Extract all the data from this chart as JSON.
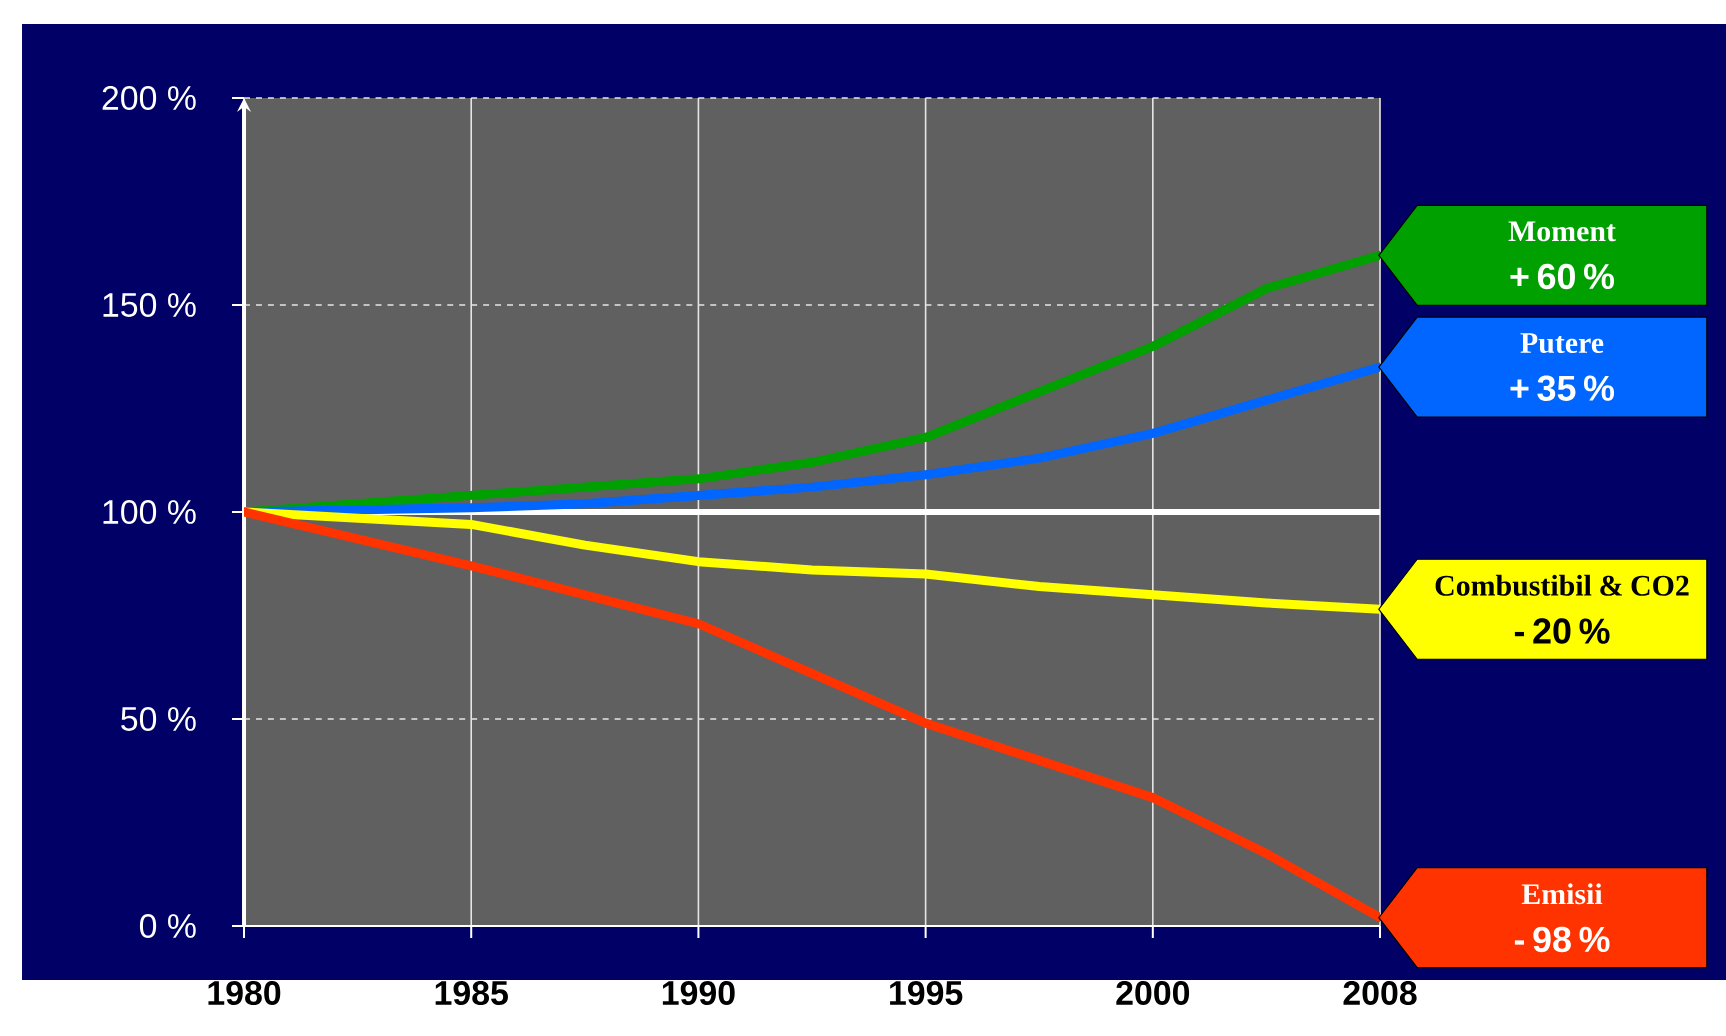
{
  "chart_data": {
    "type": "line",
    "categories": [
      "1980",
      null,
      "1985",
      null,
      "1990",
      null,
      "1995",
      null,
      "2000",
      null,
      "2008"
    ],
    "series": [
      {
        "name": "Moment",
        "color": "#00a000",
        "values": [
          100,
          102,
          104,
          106,
          108,
          112,
          118,
          129,
          140,
          154,
          162
        ]
      },
      {
        "name": "Putere",
        "color": "#0066ff",
        "values": [
          100,
          100.5,
          101,
          102,
          104,
          106,
          109,
          113,
          119,
          127,
          135
        ]
      },
      {
        "name": "Combustibil & CO2",
        "color": "#ffff00",
        "values": [
          100,
          98.5,
          97,
          92,
          88,
          86,
          85,
          82,
          80,
          78,
          76.5
        ]
      },
      {
        "name": "Emisii",
        "color": "#ff3300",
        "values": [
          100,
          93.5,
          87,
          80,
          73,
          61,
          49,
          40,
          31,
          17.5,
          2
        ]
      }
    ],
    "ylim": [
      0,
      200
    ],
    "yticks": [
      {
        "value": 0,
        "label": "0 %"
      },
      {
        "value": 50,
        "label": "50 %"
      },
      {
        "value": 100,
        "label": "100 %"
      },
      {
        "value": 150,
        "label": "150 %"
      },
      {
        "value": 200,
        "label": "200 %"
      }
    ],
    "grid": true,
    "ref_lines": [
      {
        "axis": "y",
        "value": 100,
        "color": "#ffffff"
      }
    ],
    "annotations": [
      "+ 60 %",
      "+ 35 %",
      "- 20 %",
      "- 98 %"
    ]
  }
}
